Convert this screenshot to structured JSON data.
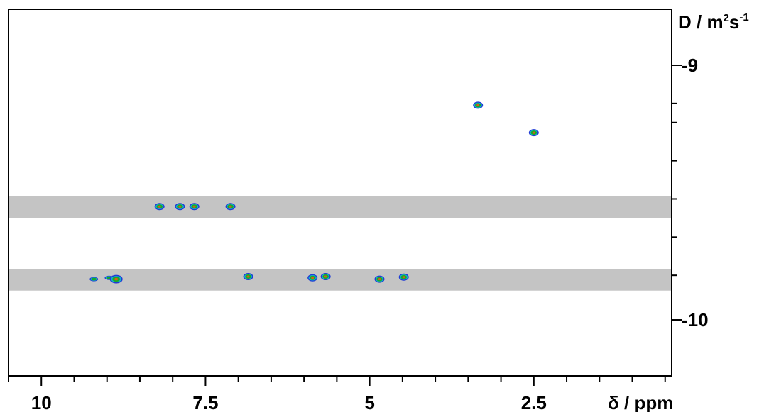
{
  "chart_data": {
    "type": "2d-contour (DOSY NMR)",
    "xlabel": "δ / ppm",
    "ylabel_main": "D / m",
    "ylabel_sup1": "2",
    "ylabel_s": "s",
    "ylabel_sup2": "-1",
    "x_axis": {
      "reversed": true,
      "range": [
        10.5,
        0.4
      ],
      "major_ticks": [
        10,
        7.5,
        5,
        2.5
      ],
      "tick_labels": [
        "10",
        "7.5",
        "5",
        "2.5"
      ],
      "minor_step": 0.5
    },
    "y_axis": {
      "scale": "log10(D)",
      "range": [
        -10.22,
        -8.78
      ],
      "major_ticks": [
        -10,
        -9
      ],
      "tick_labels": [
        "-10",
        "-9"
      ],
      "minor_ticks": [
        -9.825,
        -9.675,
        -9.525,
        -9.375,
        -9.225,
        -9.15
      ]
    },
    "bands": [
      {
        "logD_from": -9.885,
        "logD_to": -9.8
      },
      {
        "logD_from": -9.6,
        "logD_to": -9.515
      }
    ],
    "peaks": [
      {
        "ppm": 9.2,
        "logD": -9.84,
        "size": "small"
      },
      {
        "ppm": 8.97,
        "logD": -9.835,
        "size": "small"
      },
      {
        "ppm": 8.86,
        "logD": -9.84,
        "size": "large"
      },
      {
        "ppm": 6.85,
        "logD": -9.83,
        "size": "medium"
      },
      {
        "ppm": 5.87,
        "logD": -9.835,
        "size": "medium"
      },
      {
        "ppm": 5.67,
        "logD": -9.83,
        "size": "medium"
      },
      {
        "ppm": 4.85,
        "logD": -9.84,
        "size": "medium"
      },
      {
        "ppm": 4.48,
        "logD": -9.832,
        "size": "medium"
      },
      {
        "ppm": 8.2,
        "logD": -9.555,
        "size": "medium"
      },
      {
        "ppm": 7.89,
        "logD": -9.555,
        "size": "medium"
      },
      {
        "ppm": 7.67,
        "logD": -9.555,
        "size": "medium"
      },
      {
        "ppm": 7.12,
        "logD": -9.555,
        "size": "medium"
      },
      {
        "ppm": 2.5,
        "logD": -9.265,
        "size": "medium"
      },
      {
        "ppm": 3.35,
        "logD": -9.157,
        "size": "medium"
      }
    ],
    "grid": false,
    "legend": "none"
  },
  "colors": {
    "band": "#c4c4c4",
    "frame": "#000000",
    "contour_outer": "#1f3bd6",
    "contour_mid": "#12b4c8",
    "contour_inner": "#18a82a",
    "contour_core": "#d85a1a"
  }
}
